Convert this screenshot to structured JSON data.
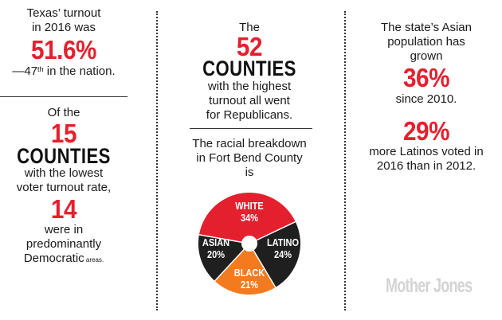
{
  "col1": {
    "turnout_intro": [
      "Texas’ turnout",
      "in 2016 was"
    ],
    "turnout_value": "51.6%",
    "rank_prefix": "—47",
    "rank_sup": "th",
    "rank_suffix": " in the nation.",
    "lowest_intro": "Of the",
    "lowest_count": "15",
    "counties_label": "COUNTIES",
    "lowest_desc": [
      "with the lowest",
      "voter turnout rate,"
    ],
    "dem_count": "14",
    "dem_desc": [
      "were in",
      "predominantly"
    ],
    "dem_last": "Democratic",
    "dem_last_small": " areas."
  },
  "col2": {
    "top_intro": "The",
    "top_count": "52",
    "counties_label": "COUNTIES",
    "top_desc": [
      "with the highest",
      "turnout all went",
      "for Republicans."
    ],
    "breakdown_title": [
      "The racial breakdown",
      "in Fort Bend County",
      "is"
    ],
    "pie": [
      {
        "name": "WHITE",
        "value": "34%",
        "color": "#e5202e"
      },
      {
        "name": "LATINO",
        "value": "24%",
        "color": "#1f1f1f"
      },
      {
        "name": "BLACK",
        "value": "21%",
        "color": "#f47a20"
      },
      {
        "name": "ASIAN",
        "value": "20%",
        "color": "#1f1f1f"
      }
    ]
  },
  "col3": {
    "asian_intro": [
      "The state’s Asian",
      "population has",
      "grown"
    ],
    "asian_value": "36%",
    "asian_since": "since 2010.",
    "latino_value": "29%",
    "latino_desc": [
      "more Latinos voted in",
      "2016 than in 2012."
    ]
  },
  "brand": {
    "logo_text": "Mother Jones"
  }
}
